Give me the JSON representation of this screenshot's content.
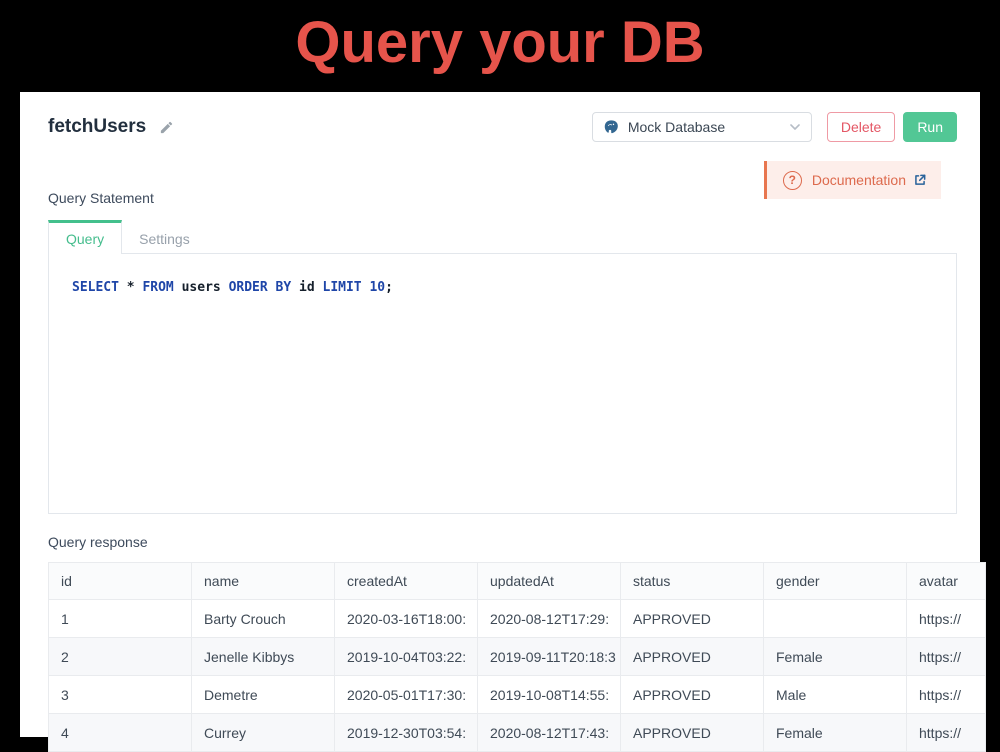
{
  "page_title": "Query your DB",
  "colors": {
    "title_red": "#e6544b",
    "accent_green": "#52c795",
    "danger_red": "#e45765",
    "doc_orange": "#dd6a4d",
    "sql_keyword_blue": "#1f46a8",
    "panel_bg": "#ffffff",
    "page_bg": "#000000"
  },
  "icons": {
    "edit": "pencil-icon",
    "datasource": "postgresql-icon",
    "select_caret": "chevron-down-icon",
    "documentation_help": "question-circle-icon",
    "documentation_external": "external-link-icon"
  },
  "header": {
    "query_name": "fetchUsers",
    "datasource_label": "Mock Database",
    "delete_label": "Delete",
    "run_label": "Run"
  },
  "documentation": {
    "label": "Documentation"
  },
  "editor": {
    "section_label": "Query Statement",
    "tabs": [
      {
        "label": "Query",
        "active": true
      },
      {
        "label": "Settings",
        "active": false
      }
    ],
    "sql_tokens": [
      {
        "text": "SELECT",
        "type": "keyword"
      },
      {
        "text": " * ",
        "type": "plain"
      },
      {
        "text": "FROM",
        "type": "keyword"
      },
      {
        "text": " users ",
        "type": "plain"
      },
      {
        "text": "ORDER BY",
        "type": "keyword"
      },
      {
        "text": " id ",
        "type": "plain"
      },
      {
        "text": "LIMIT",
        "type": "keyword"
      },
      {
        "text": " ",
        "type": "plain"
      },
      {
        "text": "10",
        "type": "number"
      },
      {
        "text": ";",
        "type": "plain"
      }
    ]
  },
  "response": {
    "section_label": "Query response",
    "table": {
      "columns": [
        "id",
        "name",
        "createdAt",
        "updatedAt",
        "status",
        "gender",
        "avatar"
      ],
      "rows": [
        [
          "1",
          "Barty Crouch",
          "2020-03-16T18:00:",
          "2020-08-12T17:29:",
          "APPROVED",
          "",
          "https://"
        ],
        [
          "2",
          "Jenelle Kibbys",
          "2019-10-04T03:22:",
          "2019-09-11T20:18:3",
          "APPROVED",
          "Female",
          "https://"
        ],
        [
          "3",
          "Demetre",
          "2020-05-01T17:30:",
          "2019-10-08T14:55:",
          "APPROVED",
          "Male",
          "https://"
        ],
        [
          "4",
          "Currey",
          "2019-12-30T03:54:",
          "2020-08-12T17:43:",
          "APPROVED",
          "Female",
          "https://"
        ]
      ]
    }
  }
}
